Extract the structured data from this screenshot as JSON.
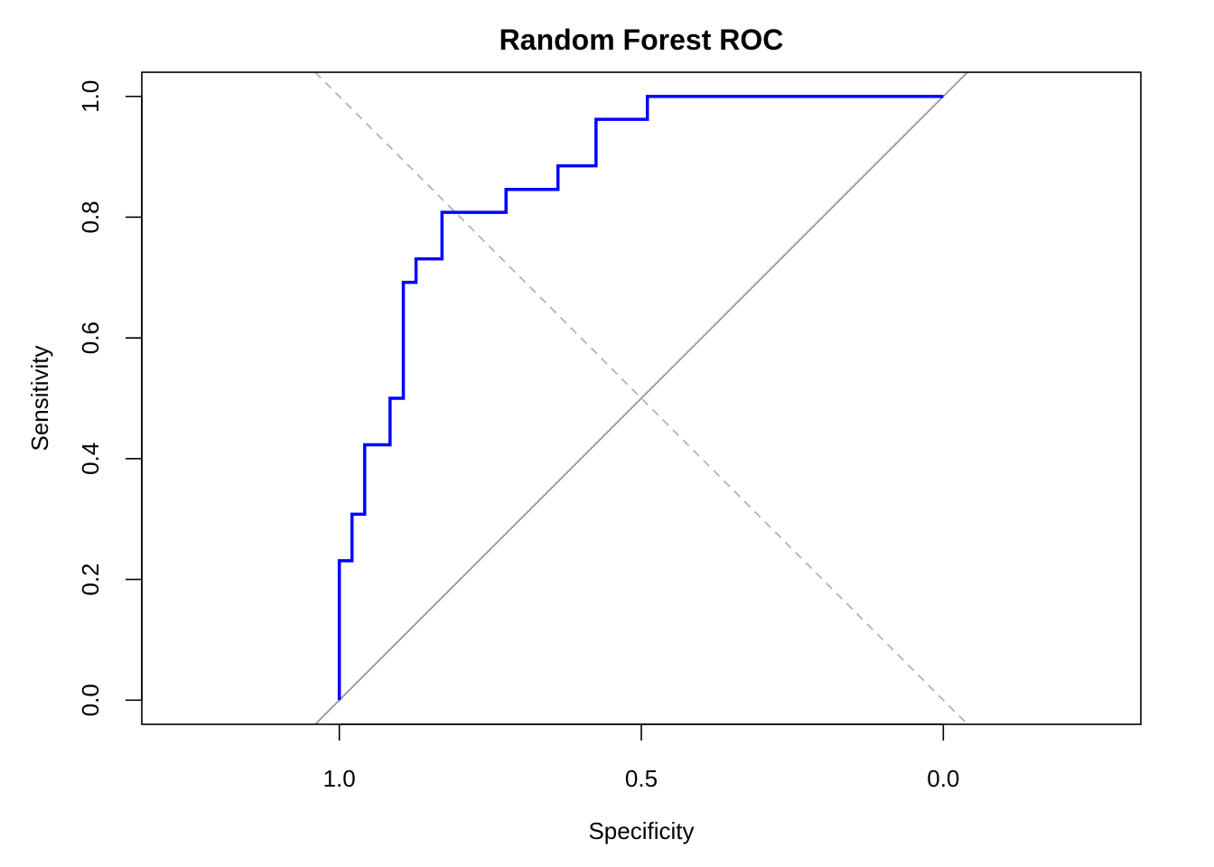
{
  "chart_data": {
    "type": "line",
    "title": "Random Forest ROC",
    "xlabel": "Specificity",
    "ylabel": "Sensitivity",
    "x_reversed": true,
    "xlim": [
      1.327,
      -0.327
    ],
    "ylim": [
      -0.04,
      1.04
    ],
    "x_ticks": [
      1.0,
      0.5,
      0.0
    ],
    "x_tick_labels": [
      "1.0",
      "0.5",
      "0.0"
    ],
    "y_ticks": [
      0.0,
      0.2,
      0.4,
      0.6,
      0.8,
      1.0
    ],
    "y_tick_labels": [
      "0.0",
      "0.2",
      "0.4",
      "0.6",
      "0.8",
      "1.0"
    ],
    "grid": false,
    "series": [
      {
        "role": "roc-curve",
        "color": "#0000ff",
        "step": true,
        "specificity": [
          1.0,
          1.0,
          0.979,
          0.979,
          0.958,
          0.958,
          0.916,
          0.916,
          0.894,
          0.894,
          0.873,
          0.873,
          0.83,
          0.83,
          0.724,
          0.724,
          0.638,
          0.638,
          0.575,
          0.575,
          0.49,
          0.49,
          0.0
        ],
        "sensitivity": [
          0.0,
          0.231,
          0.231,
          0.308,
          0.308,
          0.423,
          0.423,
          0.5,
          0.5,
          0.692,
          0.692,
          0.731,
          0.731,
          0.808,
          0.808,
          0.846,
          0.846,
          0.885,
          0.885,
          0.962,
          0.962,
          1.0,
          1.0
        ]
      }
    ],
    "reference_lines": [
      {
        "role": "chance-diagonal",
        "style": "solid",
        "color": "#999999",
        "x": [
          1.04,
          -0.04
        ],
        "y": [
          -0.04,
          1.04
        ]
      },
      {
        "role": "anti-diagonal",
        "style": "dashed",
        "color": "#b3b3b3",
        "x": [
          1.04,
          -0.04
        ],
        "y": [
          1.04,
          -0.04
        ]
      }
    ]
  }
}
